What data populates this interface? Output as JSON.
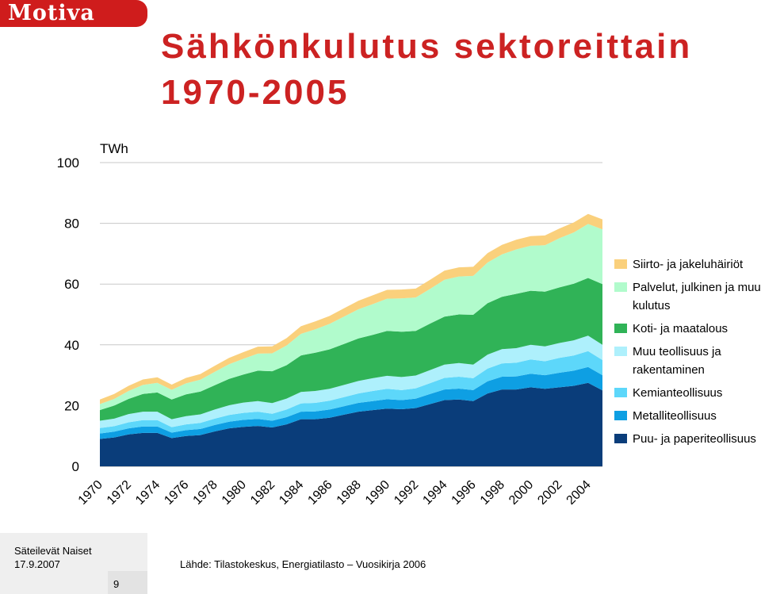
{
  "header": {
    "logo_text": "Motiva"
  },
  "page_title": "Sähkönkulutus sektoreittain 1970-2005",
  "chart_data": {
    "type": "area",
    "stacked": true,
    "ylabel": "TWh",
    "ylim": [
      0,
      100
    ],
    "yticks": [
      0,
      20,
      40,
      60,
      80,
      100
    ],
    "xtick_labels": [
      "1970",
      "1972",
      "1974",
      "1976",
      "1978",
      "1980",
      "1982",
      "1984",
      "1986",
      "1988",
      "1990",
      "1992",
      "1994",
      "1996",
      "1998",
      "2000",
      "2002",
      "2004"
    ],
    "x": [
      1970,
      1971,
      1972,
      1973,
      1974,
      1975,
      1976,
      1977,
      1978,
      1979,
      1980,
      1981,
      1982,
      1983,
      1984,
      1985,
      1986,
      1987,
      1988,
      1989,
      1990,
      1991,
      1992,
      1993,
      1994,
      1995,
      1996,
      1997,
      1998,
      1999,
      2000,
      2001,
      2002,
      2003,
      2004,
      2005
    ],
    "legend_position": "right",
    "series": [
      {
        "name": "Puu- ja paperiteollisuus",
        "color": "#0a3d7a",
        "values": [
          9.0,
          9.5,
          10.5,
          11.0,
          11.0,
          9.3,
          10.0,
          10.3,
          11.5,
          12.5,
          13.0,
          13.3,
          12.8,
          13.8,
          15.5,
          15.5,
          16.0,
          17.0,
          18.0,
          18.5,
          19.0,
          18.8,
          19.2,
          20.5,
          21.8,
          22.0,
          21.5,
          24.0,
          25.3,
          25.3,
          26.0,
          25.5,
          26.0,
          26.5,
          27.5,
          25.0
        ]
      },
      {
        "name": "Metalliteollisuus",
        "color": "#0e9fe3",
        "values": [
          1.8,
          1.9,
          2.0,
          2.1,
          2.1,
          1.8,
          1.9,
          2.0,
          2.1,
          2.2,
          2.3,
          2.3,
          2.2,
          2.4,
          2.5,
          2.6,
          2.7,
          2.8,
          2.9,
          3.0,
          3.1,
          3.0,
          3.1,
          3.3,
          3.5,
          3.6,
          3.6,
          4.0,
          4.2,
          4.3,
          4.5,
          4.5,
          4.8,
          5.0,
          5.2,
          5.0
        ]
      },
      {
        "name": "Kemianteollisuus",
        "color": "#5dd7fa",
        "values": [
          1.8,
          1.8,
          2.0,
          2.1,
          2.1,
          1.8,
          1.9,
          2.0,
          2.1,
          2.2,
          2.3,
          2.4,
          2.3,
          2.5,
          2.7,
          2.8,
          2.9,
          3.0,
          3.1,
          3.3,
          3.4,
          3.3,
          3.4,
          3.6,
          3.8,
          3.9,
          3.9,
          4.2,
          4.4,
          4.5,
          4.7,
          4.6,
          4.9,
          5.0,
          5.2,
          5.0
        ]
      },
      {
        "name": "Muu teollisuus ja rakentaminen",
        "color": "#aef0fc",
        "values": [
          2.4,
          2.5,
          2.7,
          2.8,
          2.8,
          2.6,
          2.7,
          2.8,
          3.0,
          3.2,
          3.4,
          3.5,
          3.5,
          3.6,
          3.8,
          3.9,
          3.9,
          4.0,
          4.1,
          4.2,
          4.3,
          4.3,
          4.2,
          4.3,
          4.4,
          4.5,
          4.5,
          4.6,
          4.7,
          4.8,
          4.8,
          4.9,
          4.9,
          5.0,
          5.1,
          5.0
        ]
      },
      {
        "name": "Koti- ja maatalous",
        "color": "#30b357",
        "values": [
          3.5,
          4.3,
          5.0,
          5.8,
          6.3,
          6.5,
          7.2,
          7.5,
          8.0,
          8.7,
          9.2,
          10.0,
          10.5,
          11.0,
          12.0,
          12.6,
          13.0,
          13.5,
          14.0,
          14.3,
          14.8,
          14.9,
          14.7,
          15.3,
          15.8,
          16.0,
          16.4,
          16.9,
          17.2,
          17.9,
          17.8,
          18.0,
          18.3,
          18.6,
          19.0,
          20.0
        ]
      },
      {
        "name": "Palvelut, julkinen ja muu kulutus",
        "color": "#b1fbcc",
        "values": [
          2.0,
          2.2,
          2.6,
          3.0,
          3.2,
          3.2,
          3.6,
          3.9,
          4.4,
          4.8,
          5.2,
          5.6,
          5.9,
          6.5,
          7.1,
          7.7,
          8.4,
          9.0,
          9.6,
          10.1,
          10.6,
          11.0,
          11.0,
          11.4,
          12.1,
          12.5,
          12.8,
          13.4,
          14.0,
          14.6,
          14.8,
          15.3,
          16.2,
          16.9,
          17.8,
          18.0
        ]
      },
      {
        "name": "Siirto- ja jakeluhäiriöt",
        "color": "#fad07c",
        "values": [
          1.5,
          1.6,
          1.7,
          1.8,
          1.8,
          1.7,
          1.8,
          1.9,
          2.0,
          2.1,
          2.2,
          2.3,
          2.3,
          2.4,
          2.5,
          2.6,
          2.6,
          2.7,
          2.8,
          2.9,
          2.9,
          2.9,
          2.9,
          3.0,
          3.0,
          3.0,
          3.0,
          3.1,
          3.1,
          3.2,
          3.2,
          3.2,
          3.2,
          3.3,
          3.3,
          3.3
        ]
      }
    ]
  },
  "footer": {
    "author": "Säteilevät Naiset",
    "date": "17.9.2007",
    "page_number": "9",
    "source": "Lähde: Tilastokeskus, Energiatilasto – Vuosikirja 2006"
  }
}
